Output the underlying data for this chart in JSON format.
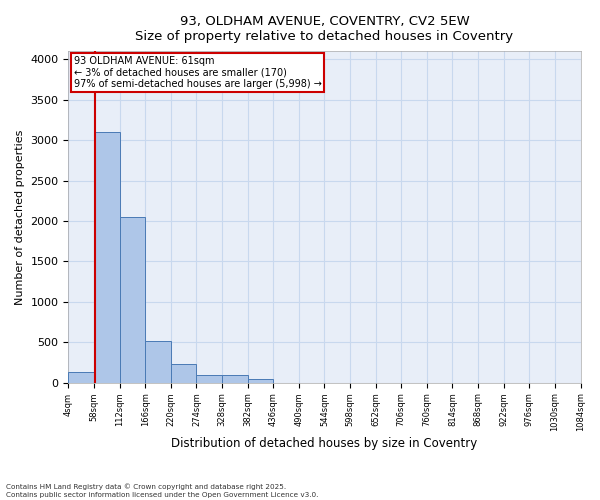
{
  "title_line1": "93, OLDHAM AVENUE, COVENTRY, CV2 5EW",
  "title_line2": "Size of property relative to detached houses in Coventry",
  "xlabel": "Distribution of detached houses by size in Coventry",
  "ylabel": "Number of detached properties",
  "bin_edges": [
    4,
    58,
    112,
    166,
    220,
    274,
    328,
    382,
    436,
    490,
    544,
    598,
    652,
    706,
    760,
    814,
    868,
    922,
    976,
    1030,
    1084
  ],
  "bar_heights": [
    130,
    3100,
    2050,
    520,
    230,
    100,
    100,
    50,
    0,
    0,
    0,
    0,
    0,
    0,
    0,
    0,
    0,
    0,
    0,
    0
  ],
  "bar_color": "#aec6e8",
  "bar_edge_color": "#4a7ab5",
  "grid_color": "#c8d8ee",
  "background_color": "#e8eef8",
  "vline_x": 61,
  "vline_color": "#cc0000",
  "annotation_text": "93 OLDHAM AVENUE: 61sqm\n← 3% of detached houses are smaller (170)\n97% of semi-detached houses are larger (5,998) →",
  "annotation_box_color": "#cc0000",
  "ylim": [
    0,
    4100
  ],
  "yticks": [
    0,
    500,
    1000,
    1500,
    2000,
    2500,
    3000,
    3500,
    4000
  ],
  "footer_line1": "Contains HM Land Registry data © Crown copyright and database right 2025.",
  "footer_line2": "Contains public sector information licensed under the Open Government Licence v3.0."
}
